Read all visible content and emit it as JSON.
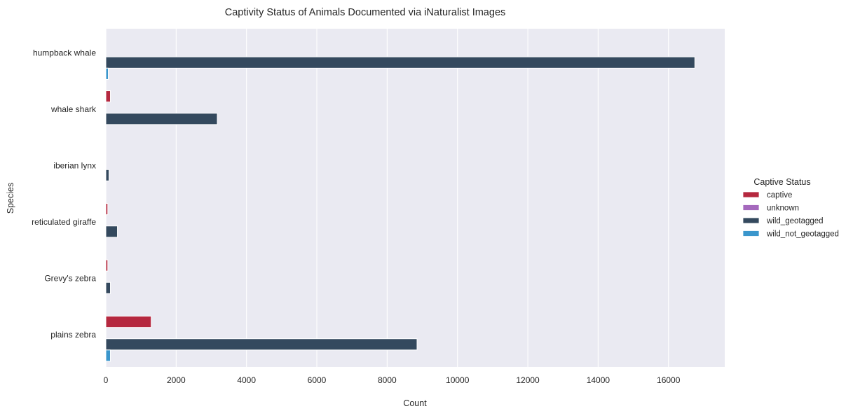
{
  "chart_data": {
    "type": "bar",
    "orientation": "horizontal",
    "title": "Captivity Status of Animals Documented via iNaturalist Images",
    "xlabel": "Count",
    "ylabel": "Species",
    "xlim": [
      0,
      17600
    ],
    "xticks": [
      0,
      2000,
      4000,
      6000,
      8000,
      10000,
      12000,
      14000,
      16000
    ],
    "grid": true,
    "legend": {
      "title": "Captive Status",
      "placement": "right"
    },
    "categories": [
      "humpback whale",
      "whale shark",
      "iberian lynx",
      "reticulated giraffe",
      "Grevy's zebra",
      "plains zebra"
    ],
    "series": [
      {
        "name": "captive",
        "color": "#b5283f",
        "values": [
          0,
          130,
          0,
          55,
          55,
          1290
        ]
      },
      {
        "name": "unknown",
        "color": "#a569bd",
        "values": [
          0,
          0,
          0,
          0,
          0,
          0
        ]
      },
      {
        "name": "wild_geotagged",
        "color": "#34495e",
        "values": [
          16750,
          3170,
          90,
          330,
          130,
          8850
        ]
      },
      {
        "name": "wild_not_geotagged",
        "color": "#3a96cc",
        "values": [
          70,
          0,
          0,
          0,
          0,
          130
        ]
      }
    ]
  }
}
